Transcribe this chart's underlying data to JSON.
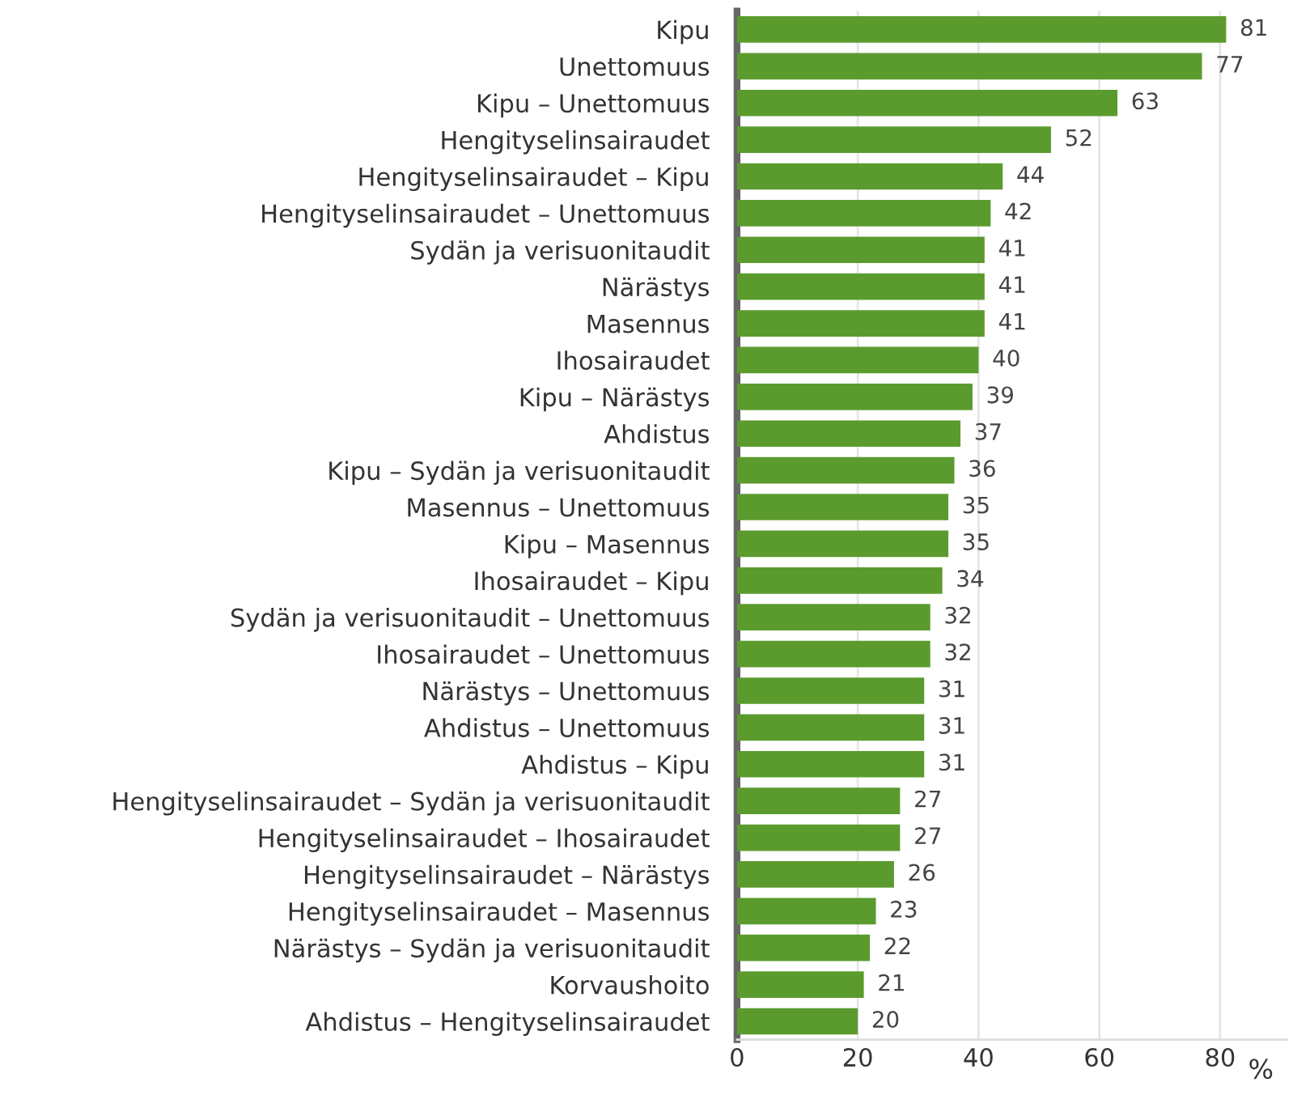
{
  "chart_data": {
    "type": "bar",
    "orientation": "horizontal",
    "xlabel": "%",
    "categories": [
      "Kipu",
      "Unettomuus",
      "Kipu – Unettomuus",
      "Hengityselinsairaudet",
      "Hengityselinsairaudet – Kipu",
      "Hengityselinsairaudet – Unettomuus",
      "Sydän ja verisuonitaudit",
      "Närästys",
      "Masennus",
      "Ihosairaudet",
      "Kipu – Närästys",
      "Ahdistus",
      "Kipu – Sydän ja verisuonitaudit",
      "Masennus – Unettomuus",
      "Kipu – Masennus",
      "Ihosairaudet – Kipu",
      "Sydän ja verisuonitaudit – Unettomuus",
      "Ihosairaudet – Unettomuus",
      "Närästys – Unettomuus",
      "Ahdistus – Unettomuus",
      "Ahdistus – Kipu",
      "Hengityselinsairaudet – Sydän ja verisuonitaudit",
      "Hengityselinsairaudet – Ihosairaudet",
      "Hengityselinsairaudet – Närästys",
      "Hengityselinsairaudet – Masennus",
      "Närästys – Sydän ja verisuonitaudit",
      "Korvaushoito",
      "Ahdistus – Hengityselinsairaudet"
    ],
    "values": [
      81,
      77,
      63,
      52,
      44,
      42,
      41,
      41,
      41,
      40,
      39,
      37,
      36,
      35,
      35,
      34,
      32,
      32,
      31,
      31,
      31,
      27,
      27,
      26,
      23,
      22,
      21,
      20
    ],
    "color": "#5b9b2e",
    "xlim": [
      0,
      91
    ],
    "xticks": [
      0,
      20,
      40,
      60,
      80
    ],
    "grid": "x",
    "data_labels": true,
    "legend": false
  }
}
